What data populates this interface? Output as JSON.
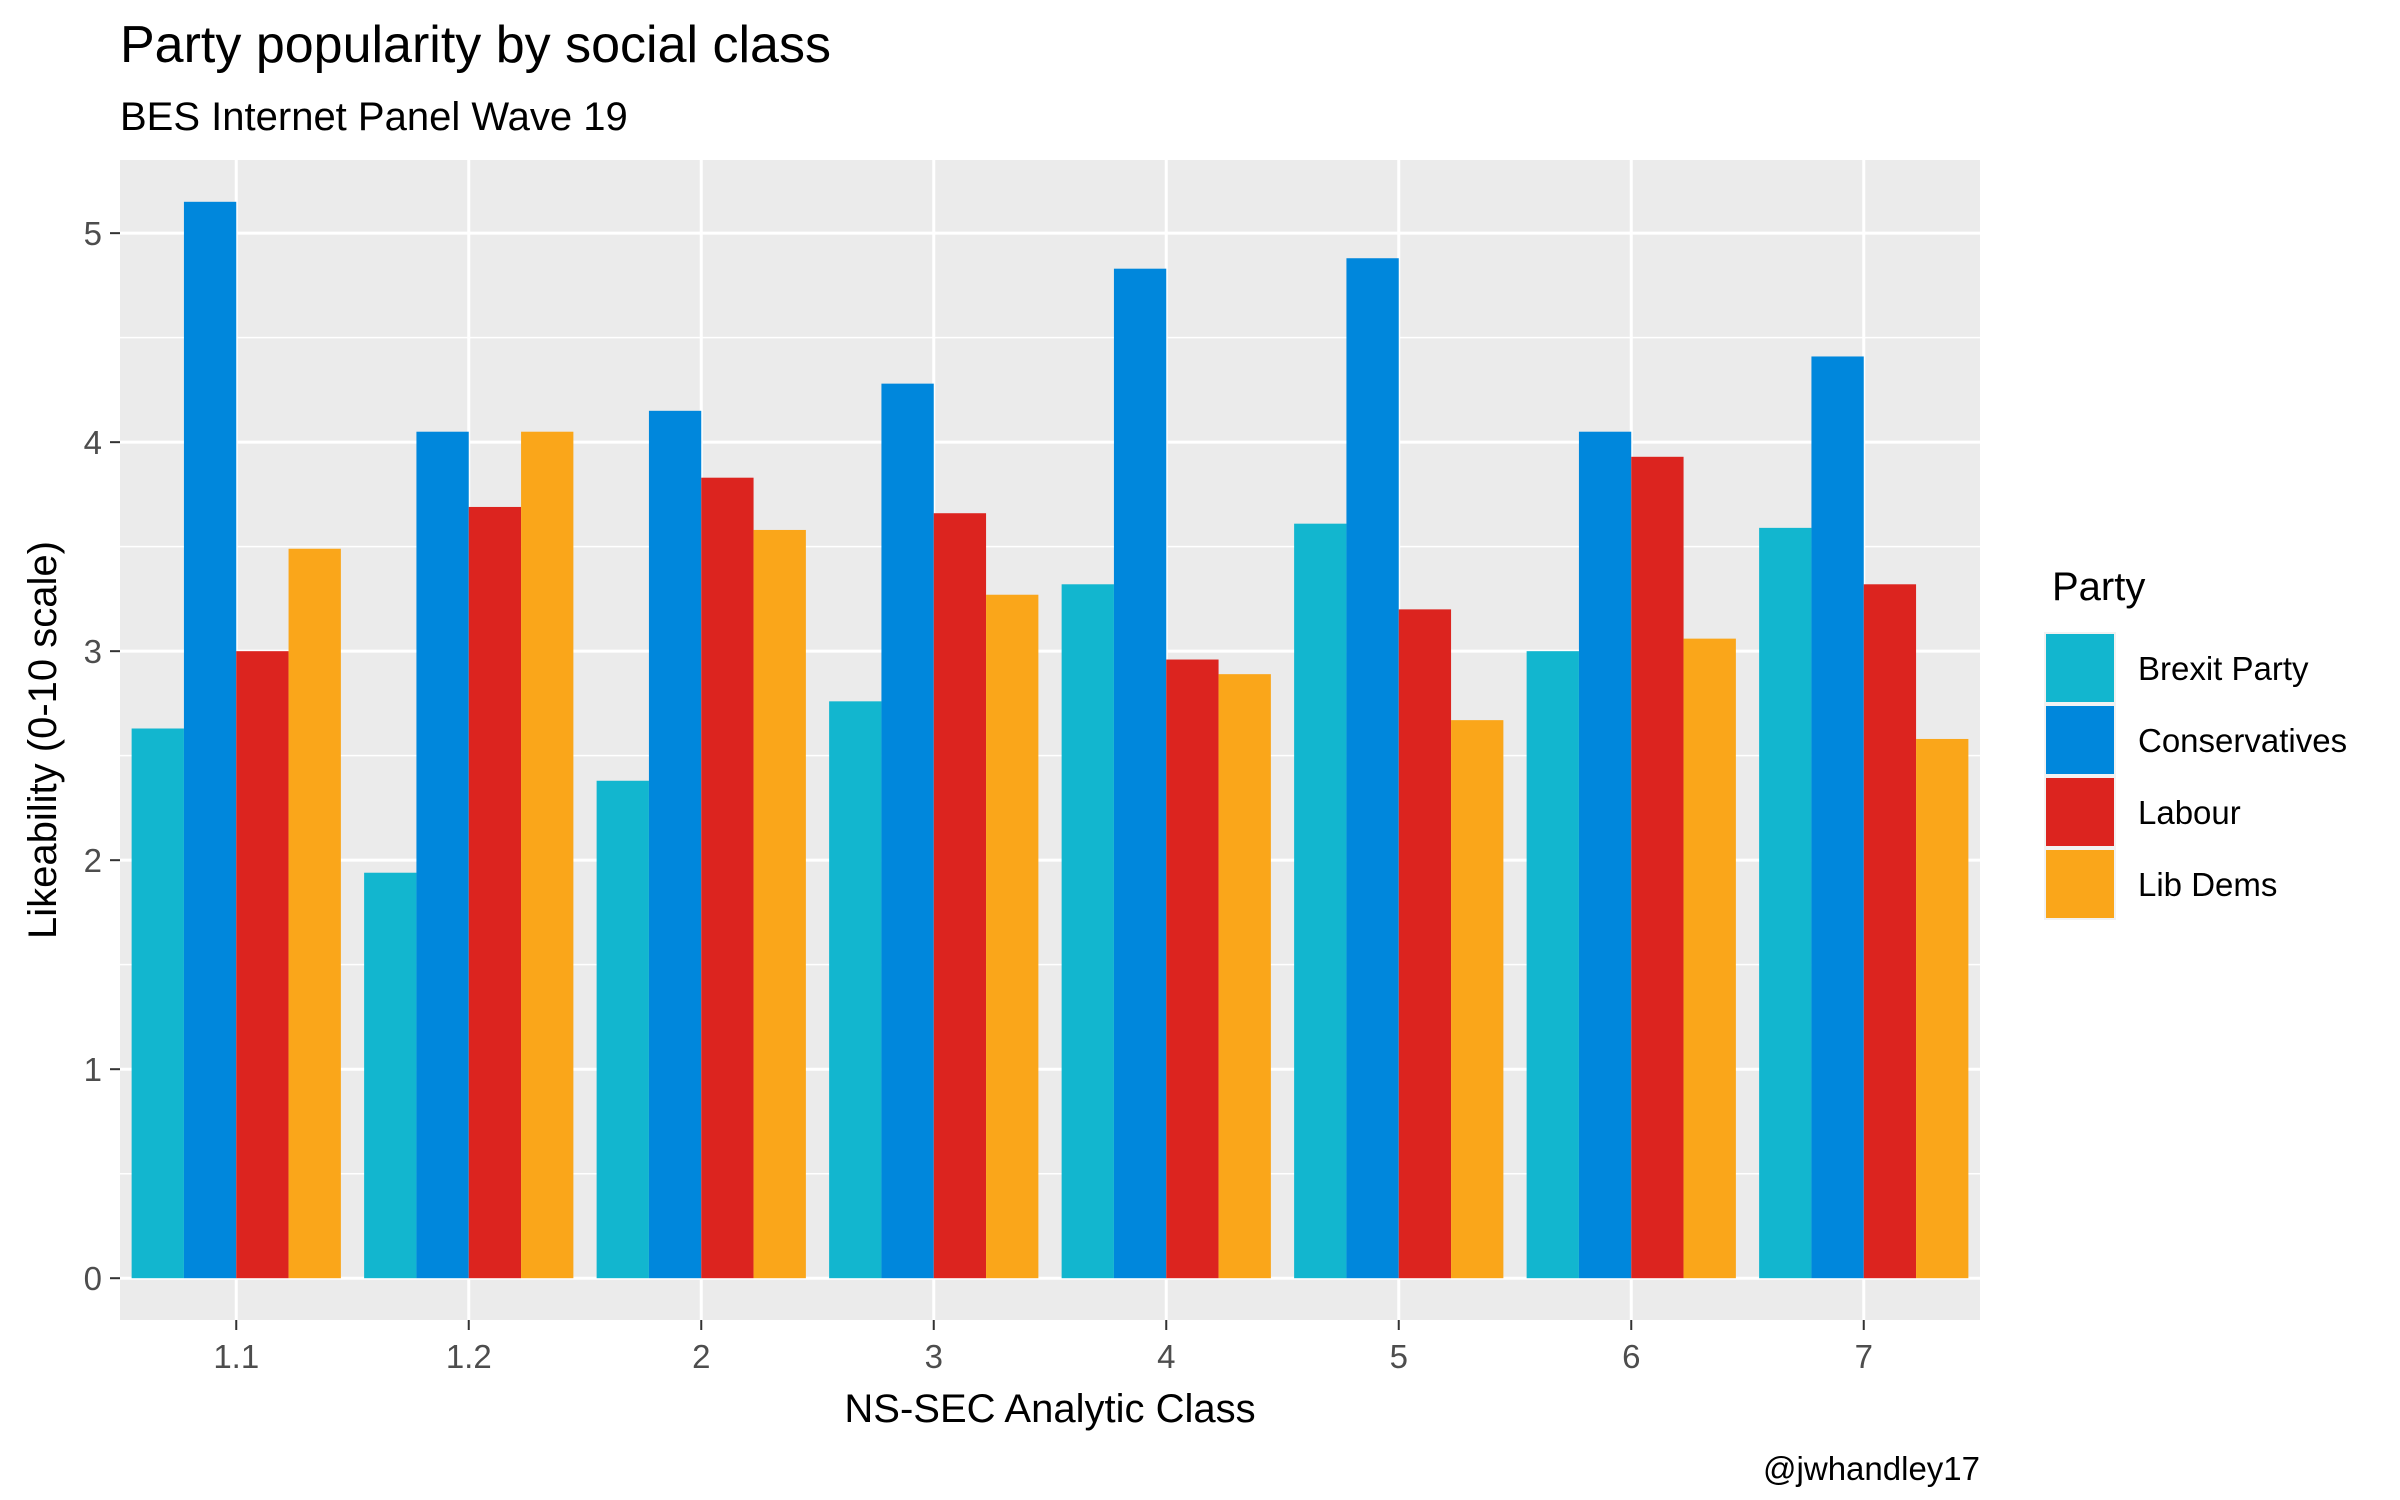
{
  "chart_data": {
    "type": "bar",
    "title": "Party popularity by social class",
    "subtitle": "BES Internet Panel Wave 19",
    "xlabel": "NS-SEC Analytic Class",
    "ylabel": "Likeability (0-10 scale)",
    "caption": "@jwhandley17",
    "categories": [
      "1.1",
      "1.2",
      "2",
      "3",
      "4",
      "5",
      "6",
      "7"
    ],
    "ylim": [
      -0.2,
      5.35
    ],
    "yticks": [
      0,
      1,
      2,
      3,
      4,
      5
    ],
    "grid": true,
    "legend": {
      "title": "Party",
      "position": "right"
    },
    "series": [
      {
        "name": "Brexit Party",
        "color": "#12B6CF",
        "values": [
          2.63,
          1.94,
          2.38,
          2.76,
          3.32,
          3.61,
          3.0,
          3.59
        ]
      },
      {
        "name": "Conservatives",
        "color": "#0087DC",
        "values": [
          5.15,
          4.05,
          4.15,
          4.28,
          4.83,
          4.88,
          4.05,
          4.41
        ]
      },
      {
        "name": "Labour",
        "color": "#DC241F",
        "values": [
          3.0,
          3.69,
          3.83,
          3.66,
          2.96,
          3.2,
          3.93,
          3.32
        ]
      },
      {
        "name": "Lib Dems",
        "color": "#FAA61A",
        "values": [
          3.49,
          4.05,
          3.58,
          3.27,
          2.89,
          2.67,
          3.06,
          2.58
        ]
      }
    ]
  }
}
